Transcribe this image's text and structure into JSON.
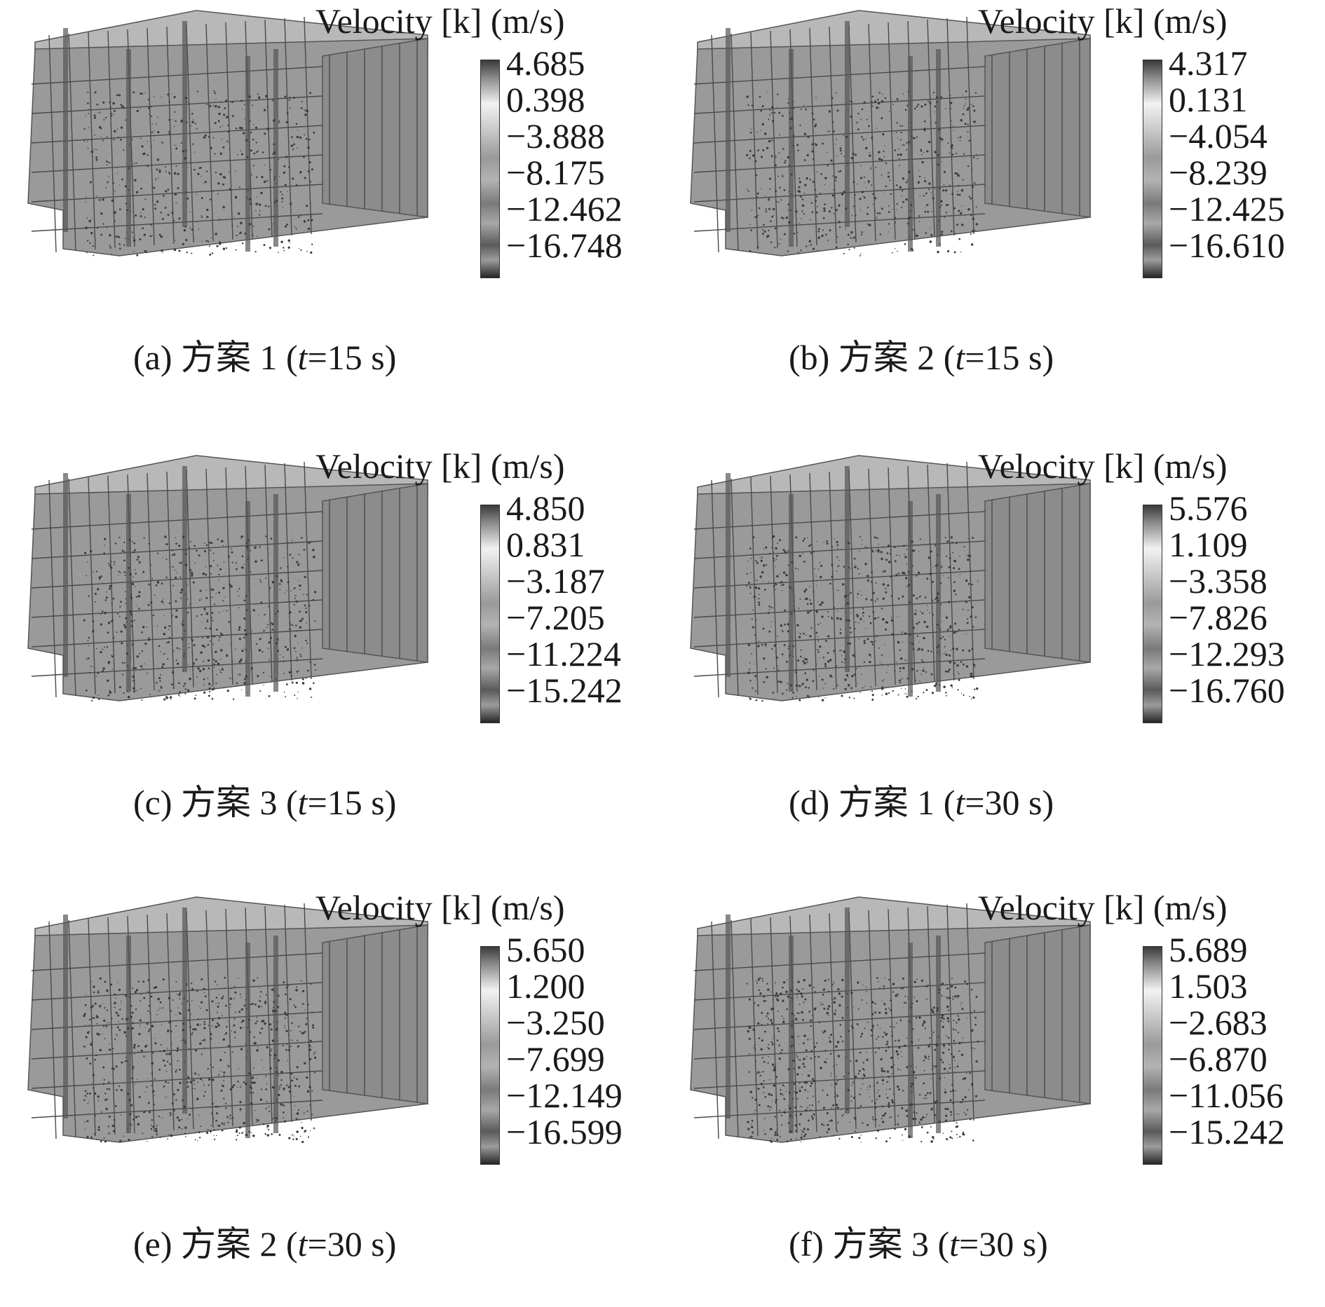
{
  "panels": [
    {
      "legend_title": "Velocity [k] (m/s)",
      "ticks": [
        "4.685",
        "0.398",
        "−3.888",
        "−8.175",
        "−12.462",
        "−16.748"
      ],
      "caption": {
        "label": "(a) 方案 1 (",
        "t": "t",
        "rest": "=15 s)"
      }
    },
    {
      "legend_title": "Velocity [k] (m/s)",
      "ticks": [
        "4.317",
        "0.131",
        "−4.054",
        "−8.239",
        "−12.425",
        "−16.610"
      ],
      "caption": {
        "label": "(b) 方案 2 (",
        "t": "t",
        "rest": "=15 s)"
      }
    },
    {
      "legend_title": "Velocity [k] (m/s)",
      "ticks": [
        "4.850",
        "0.831",
        "−3.187",
        "−7.205",
        "−11.224",
        "−15.242"
      ],
      "caption": {
        "label": "(c) 方案 3 (",
        "t": "t",
        "rest": "=15 s)"
      }
    },
    {
      "legend_title": "Velocity [k] (m/s)",
      "ticks": [
        "5.576",
        "1.109",
        "−3.358",
        "−7.826",
        "−12.293",
        "−16.760"
      ],
      "caption": {
        "label": "(d) 方案 1 (",
        "t": "t",
        "rest": "=30 s)"
      }
    },
    {
      "legend_title": "Velocity [k] (m/s)",
      "ticks": [
        "5.650",
        "1.200",
        "−3.250",
        "−7.699",
        "−12.149",
        "−16.599"
      ],
      "caption": {
        "label": "(e) 方案 2 (",
        "t": "t",
        "rest": "=30 s)"
      }
    },
    {
      "legend_title": "Velocity [k] (m/s)",
      "ticks": [
        "5.689",
        "1.503",
        "−2.683",
        "−6.870",
        "−11.056",
        "−15.242"
      ],
      "caption": {
        "label": "(f) 方案 3 (",
        "t": "t",
        "rest": "=30 s)"
      }
    }
  ],
  "colors": {
    "box_face": "#9a9a9a",
    "box_top": "#b8b8b8",
    "box_side": "#8c8c8c",
    "grid": "#4a4a4a",
    "particles": "#3c3c3c"
  }
}
